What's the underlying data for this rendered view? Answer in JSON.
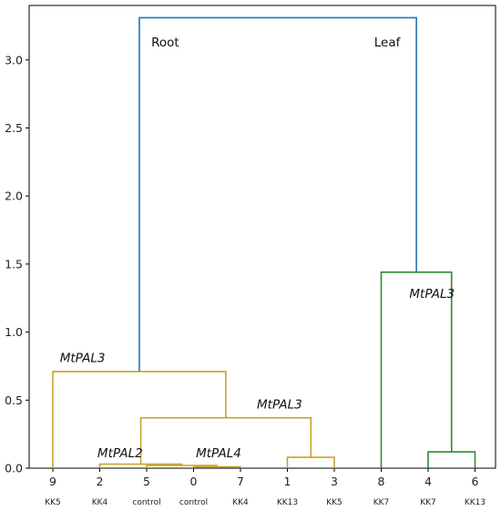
{
  "chart_data": {
    "type": "dendrogram",
    "ylim": [
      0,
      3.4
    ],
    "yticks": [
      "0.0",
      "0.5",
      "1.0",
      "1.5",
      "2.0",
      "2.5",
      "3.0"
    ],
    "ytick_values": [
      0,
      0.5,
      1.0,
      1.5,
      2.0,
      2.5,
      3.0
    ],
    "leaves": [
      {
        "label": "9",
        "sample": "KK5"
      },
      {
        "label": "2",
        "sample": "KK4"
      },
      {
        "label": "5",
        "sample": "control"
      },
      {
        "label": "0",
        "sample": "control"
      },
      {
        "label": "7",
        "sample": "KK4"
      },
      {
        "label": "1",
        "sample": "KK13"
      },
      {
        "label": "3",
        "sample": "KK5"
      },
      {
        "label": "8",
        "sample": "KK7"
      },
      {
        "label": "4",
        "sample": "KK7"
      },
      {
        "label": "6",
        "sample": "KK13"
      }
    ],
    "merges": [
      {
        "left": 3,
        "right": 4,
        "height": 0.01,
        "color": "#c9a227"
      },
      {
        "left": 2,
        "right": "0-4",
        "height": 0.02,
        "color": "#c9a227"
      },
      {
        "left": 1,
        "right": "0-4-5",
        "height": 0.03,
        "color": "#c9a227"
      },
      {
        "left": 5,
        "right": 6,
        "height": 0.08,
        "color": "#c9a227"
      },
      {
        "left": "2-0-4-5",
        "right": "5-6",
        "height": 0.37,
        "color": "#c9a227"
      },
      {
        "left": 0,
        "right": "root-sub",
        "height": 0.71,
        "color": "#c9a227"
      },
      {
        "left": 8,
        "right": 9,
        "height": 0.12,
        "color": "#2f8a2f"
      },
      {
        "left": 7,
        "right": "8-9",
        "height": 1.44,
        "color": "#2f8a2f"
      },
      {
        "left": "root",
        "right": "leaf",
        "height": 3.31,
        "color": "#1f77b4"
      }
    ],
    "annotations": [
      {
        "text": "Root",
        "italic": false,
        "x_leaf": 2.1,
        "y": 3.1
      },
      {
        "text": "Leaf",
        "italic": false,
        "x_leaf": 6.85,
        "y": 3.1
      },
      {
        "text": "MtPAL3",
        "italic": true,
        "x_leaf": 0.15,
        "y": 0.78
      },
      {
        "text": "MtPAL3",
        "italic": true,
        "x_leaf": 4.35,
        "y": 0.44
      },
      {
        "text": "MtPAL3",
        "italic": true,
        "x_leaf": 7.6,
        "y": 1.25
      },
      {
        "text": "MtPAL2",
        "italic": true,
        "x_leaf": 0.95,
        "y": 0.08
      },
      {
        "text": "MtPAL4",
        "italic": true,
        "x_leaf": 3.05,
        "y": 0.08
      }
    ]
  }
}
